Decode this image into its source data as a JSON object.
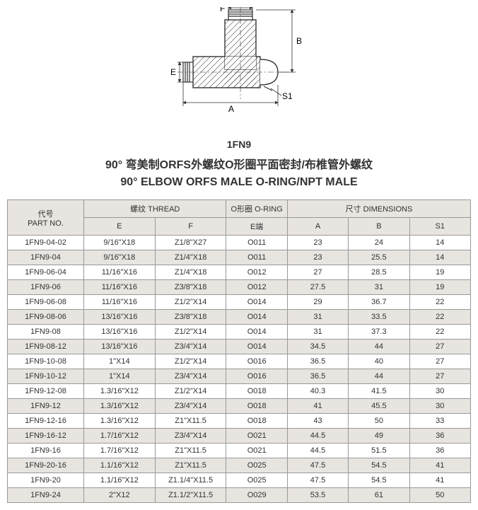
{
  "diagram": {
    "labels": {
      "F": "F",
      "B": "B",
      "E": "E",
      "A": "A",
      "S1": "S1"
    },
    "partCode": "1FN9"
  },
  "title": {
    "line1": "90° 弯美制ORFS外螺纹O形圈平面密封/布椎管外螺纹",
    "line2": "90° ELBOW ORFS MALE O-RING/NPT MALE"
  },
  "table": {
    "headers": {
      "partNo": "代号\nPART NO.",
      "thread": "螺纹 THREAD",
      "e": "E",
      "f": "F",
      "oring": "O形圈 O-RING",
      "oe": "E端",
      "dims": "尺寸 DIMENSIONS",
      "a": "A",
      "b": "B",
      "s1": "S1"
    },
    "rows": [
      {
        "p": "1FN9-04-02",
        "e": "9/16\"X18",
        "f": "Z1/8\"X27",
        "oe": "O011",
        "a": "23",
        "b": "24",
        "s1": "14"
      },
      {
        "p": "1FN9-04",
        "e": "9/16\"X18",
        "f": "Z1/4\"X18",
        "oe": "O011",
        "a": "23",
        "b": "25.5",
        "s1": "14"
      },
      {
        "p": "1FN9-06-04",
        "e": "11/16\"X16",
        "f": "Z1/4\"X18",
        "oe": "O012",
        "a": "27",
        "b": "28.5",
        "s1": "19"
      },
      {
        "p": "1FN9-06",
        "e": "11/16\"X16",
        "f": "Z3/8\"X18",
        "oe": "O012",
        "a": "27.5",
        "b": "31",
        "s1": "19"
      },
      {
        "p": "1FN9-06-08",
        "e": "11/16\"X16",
        "f": "Z1/2\"X14",
        "oe": "O014",
        "a": "29",
        "b": "36.7",
        "s1": "22"
      },
      {
        "p": "1FN9-08-06",
        "e": "13/16\"X16",
        "f": "Z3/8\"X18",
        "oe": "O014",
        "a": "31",
        "b": "33.5",
        "s1": "22"
      },
      {
        "p": "1FN9-08",
        "e": "13/16\"X16",
        "f": "Z1/2\"X14",
        "oe": "O014",
        "a": "31",
        "b": "37.3",
        "s1": "22"
      },
      {
        "p": "1FN9-08-12",
        "e": "13/16\"X16",
        "f": "Z3/4\"X14",
        "oe": "O014",
        "a": "34.5",
        "b": "44",
        "s1": "27"
      },
      {
        "p": "1FN9-10-08",
        "e": "1\"X14",
        "f": "Z1/2\"X14",
        "oe": "O016",
        "a": "36.5",
        "b": "40",
        "s1": "27"
      },
      {
        "p": "1FN9-10-12",
        "e": "1\"X14",
        "f": "Z3/4\"X14",
        "oe": "O016",
        "a": "36.5",
        "b": "44",
        "s1": "27"
      },
      {
        "p": "1FN9-12-08",
        "e": "1.3/16\"X12",
        "f": "Z1/2\"X14",
        "oe": "O018",
        "a": "40.3",
        "b": "41.5",
        "s1": "30"
      },
      {
        "p": "1FN9-12",
        "e": "1.3/16\"X12",
        "f": "Z3/4\"X14",
        "oe": "O018",
        "a": "41",
        "b": "45.5",
        "s1": "30"
      },
      {
        "p": "1FN9-12-16",
        "e": "1.3/16\"X12",
        "f": "Z1\"X11.5",
        "oe": "O018",
        "a": "43",
        "b": "50",
        "s1": "33"
      },
      {
        "p": "1FN9-16-12",
        "e": "1.7/16\"X12",
        "f": "Z3/4\"X14",
        "oe": "O021",
        "a": "44.5",
        "b": "49",
        "s1": "36"
      },
      {
        "p": "1FN9-16",
        "e": "1.7/16\"X12",
        "f": "Z1\"X11.5",
        "oe": "O021",
        "a": "44.5",
        "b": "51.5",
        "s1": "36"
      },
      {
        "p": "1FN9-20-16",
        "e": "1.1/16\"X12",
        "f": "Z1\"X11.5",
        "oe": "O025",
        "a": "47.5",
        "b": "54.5",
        "s1": "41"
      },
      {
        "p": "1FN9-20",
        "e": "1.1/16\"X12",
        "f": "Z1.1/4\"X11.5",
        "oe": "O025",
        "a": "47.5",
        "b": "54.5",
        "s1": "41"
      },
      {
        "p": "1FN9-24",
        "e": "2\"X12",
        "f": "Z1.1/2\"X11.5",
        "oe": "O029",
        "a": "53.5",
        "b": "61",
        "s1": "50"
      }
    ]
  }
}
